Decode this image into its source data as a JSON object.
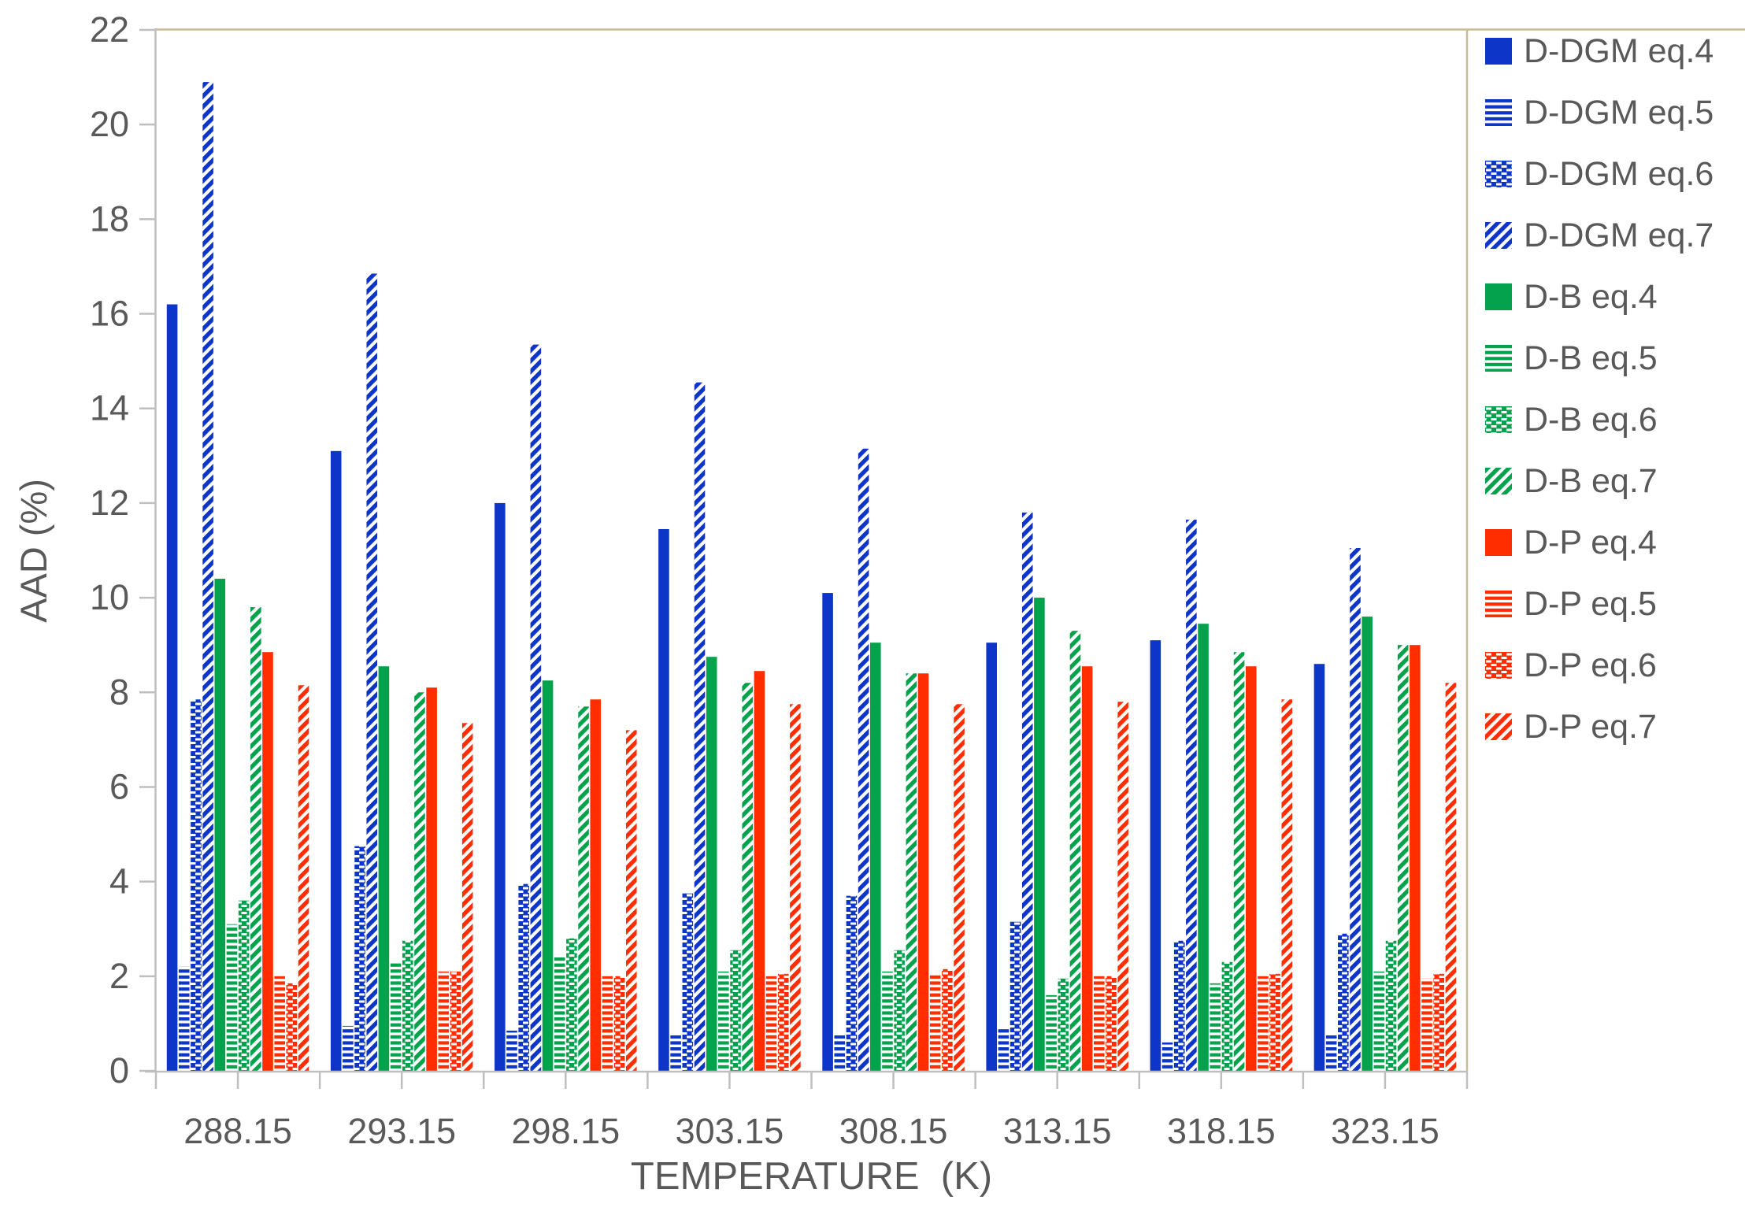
{
  "chart_data": {
    "type": "bar",
    "title": "",
    "xlabel": "TEMPERATURE  (K)",
    "ylabel": "AAD (%)",
    "categories": [
      "288.15",
      "293.15",
      "298.15",
      "303.15",
      "308.15",
      "313.15",
      "318.15",
      "323.15"
    ],
    "ylim": [
      0,
      22
    ],
    "ytick_step": 2,
    "ytick_labels": [
      "0",
      "2",
      "4",
      "6",
      "8",
      "10",
      "12",
      "14",
      "16",
      "18",
      "20",
      "22"
    ],
    "grid": false,
    "legend_position": "right",
    "series": [
      {
        "name": "D-DGM eq.4",
        "color": "#0D35C8",
        "pattern": "solid",
        "values": [
          16.2,
          13.1,
          12.0,
          11.45,
          10.1,
          9.05,
          9.1,
          8.6
        ]
      },
      {
        "name": "D-DGM eq.5",
        "color": "#0D35C8",
        "pattern": "hlines",
        "values": [
          2.2,
          0.95,
          0.85,
          0.75,
          0.75,
          0.9,
          0.6,
          0.75
        ]
      },
      {
        "name": "D-DGM eq.6",
        "color": "#0D35C8",
        "pattern": "bricks",
        "values": [
          7.85,
          4.75,
          3.95,
          3.75,
          3.7,
          3.15,
          2.75,
          2.9
        ]
      },
      {
        "name": "D-DGM eq.7",
        "color": "#0D35C8",
        "pattern": "diag",
        "values": [
          20.9,
          16.85,
          15.35,
          14.55,
          13.15,
          11.8,
          11.65,
          11.05
        ]
      },
      {
        "name": "D-B eq.4",
        "color": "#04A24C",
        "pattern": "solid",
        "values": [
          10.4,
          8.55,
          8.25,
          8.75,
          9.05,
          10.0,
          9.45,
          9.6
        ]
      },
      {
        "name": "D-B eq.5",
        "color": "#04A24C",
        "pattern": "hlines",
        "values": [
          3.1,
          2.3,
          2.45,
          2.1,
          2.1,
          1.6,
          1.85,
          2.1
        ]
      },
      {
        "name": "D-B eq.6",
        "color": "#04A24C",
        "pattern": "bricks",
        "values": [
          3.6,
          2.75,
          2.8,
          2.55,
          2.55,
          1.95,
          2.3,
          2.75
        ]
      },
      {
        "name": "D-B eq.7",
        "color": "#04A24C",
        "pattern": "diag",
        "values": [
          9.8,
          8.0,
          7.7,
          8.2,
          8.4,
          9.3,
          8.85,
          9.0
        ]
      },
      {
        "name": "D-P eq.4",
        "color": "#FF2D00",
        "pattern": "solid",
        "values": [
          8.85,
          8.1,
          7.85,
          8.45,
          8.4,
          8.55,
          8.55,
          9.0
        ]
      },
      {
        "name": "D-P eq.5",
        "color": "#FF2D00",
        "pattern": "hlines",
        "values": [
          2.0,
          2.1,
          2.0,
          2.0,
          2.05,
          2.0,
          2.0,
          1.95
        ]
      },
      {
        "name": "D-P eq.6",
        "color": "#FF2D00",
        "pattern": "bricks",
        "values": [
          1.85,
          2.1,
          2.0,
          2.05,
          2.15,
          2.0,
          2.05,
          2.05
        ]
      },
      {
        "name": "D-P eq.7",
        "color": "#FF2D00",
        "pattern": "diag",
        "values": [
          8.15,
          7.35,
          7.2,
          7.75,
          7.75,
          7.8,
          7.85,
          8.2
        ]
      }
    ]
  },
  "colors": {
    "axis_line": "#BFBFBF",
    "chart_border": "#C8BC92",
    "text": "#595959"
  }
}
